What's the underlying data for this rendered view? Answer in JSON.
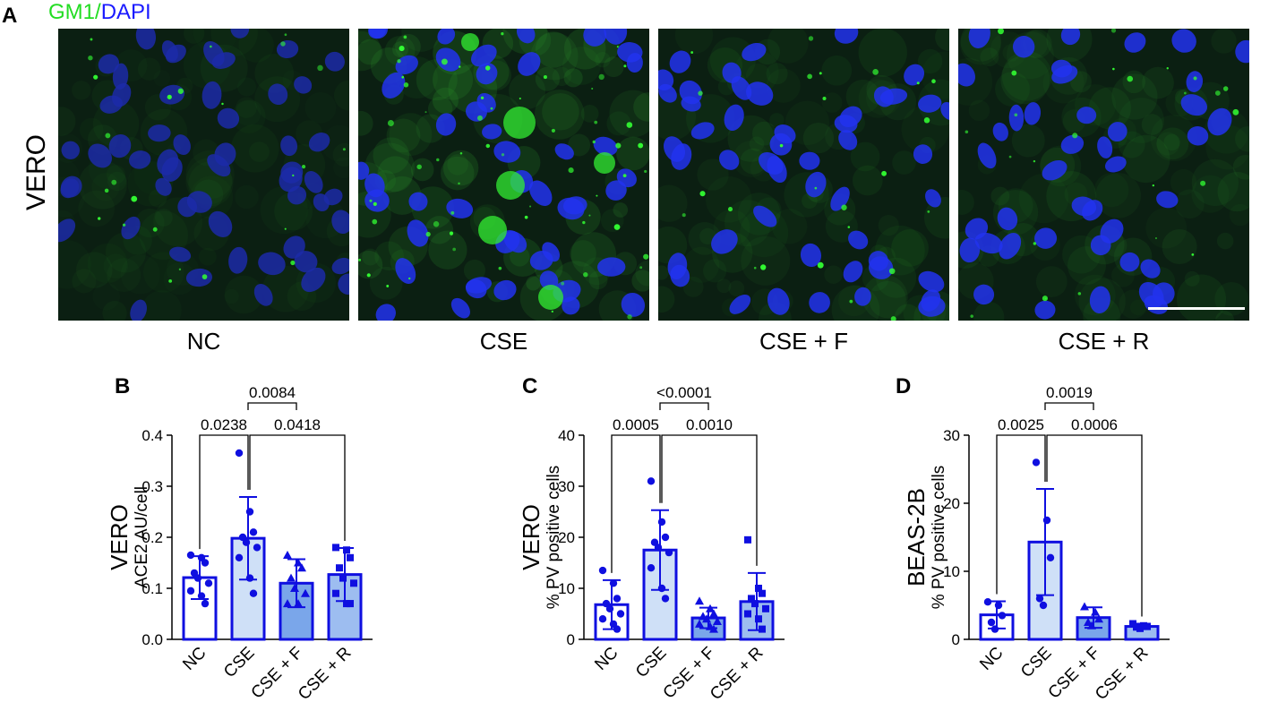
{
  "figure": {
    "panel_a": {
      "letter": "A",
      "legend_green": "GM1",
      "legend_sep": "/",
      "legend_blue": "DAPI",
      "row_label": "VERO",
      "images": [
        {
          "label": "NC"
        },
        {
          "label": "CSE"
        },
        {
          "label": "CSE + F"
        },
        {
          "label": "CSE + R"
        }
      ]
    },
    "colors": {
      "green_stain": "#22dd22",
      "blue_stain": "#1a1aff",
      "bar_stroke": "#0f0fe0",
      "bar_fill_nc": "#ffffff",
      "bar_fill_cse": "#cfe0f7",
      "bar_fill_csef": "#7aa6ea",
      "bar_fill_cser": "#9dbdf0"
    }
  },
  "chart_data": [
    {
      "panel": "B",
      "type": "bar",
      "ylabel_line1": "VERO",
      "ylabel_line2": "ACE2 AU/cell",
      "categories": [
        "NC",
        "CSE",
        "CSE + F",
        "CSE + R"
      ],
      "values": [
        0.121,
        0.198,
        0.11,
        0.127
      ],
      "sd": [
        0.042,
        0.081,
        0.047,
        0.052
      ],
      "points": [
        [
          0.165,
          0.16,
          0.15,
          0.13,
          0.12,
          0.11,
          0.095,
          0.085,
          0.07
        ],
        [
          0.365,
          0.25,
          0.21,
          0.2,
          0.19,
          0.18,
          0.16,
          0.12,
          0.09
        ],
        [
          0.165,
          0.15,
          0.14,
          0.12,
          0.1,
          0.09,
          0.07,
          0.07
        ],
        [
          0.18,
          0.175,
          0.16,
          0.14,
          0.12,
          0.11,
          0.09,
          0.07,
          0.07
        ]
      ],
      "ylim": [
        0,
        0.4
      ],
      "yticks": [
        "0.0",
        "0.1",
        "0.2",
        "0.3",
        "0.4"
      ],
      "comparisons": [
        {
          "from": 0,
          "to": 1,
          "p": "0.0238"
        },
        {
          "from": 1,
          "to": 2,
          "p": "0.0084"
        },
        {
          "from": 1,
          "to": 3,
          "p": "0.0418"
        }
      ]
    },
    {
      "panel": "C",
      "type": "bar",
      "ylabel_line1": "VERO",
      "ylabel_line2": "% PV positive cells",
      "categories": [
        "NC",
        "CSE",
        "CSE + F",
        "CSE + R"
      ],
      "values": [
        6.8,
        17.5,
        4.2,
        7.4
      ],
      "sd": [
        4.8,
        7.8,
        2.0,
        5.6
      ],
      "points": [
        [
          13.5,
          11,
          8,
          7,
          6,
          5,
          4,
          3,
          2
        ],
        [
          31,
          23,
          20,
          19,
          18,
          17,
          14,
          10,
          8
        ],
        [
          7.5,
          6,
          5,
          4.5,
          4,
          3.5,
          3,
          2.5,
          2
        ],
        [
          19.5,
          10,
          9,
          8,
          7,
          6,
          5,
          4,
          2
        ]
      ],
      "ylim": [
        0,
        40
      ],
      "yticks": [
        "0",
        "10",
        "20",
        "30",
        "40"
      ],
      "comparisons": [
        {
          "from": 0,
          "to": 1,
          "p": "0.0005"
        },
        {
          "from": 1,
          "to": 2,
          "p": "<0.0001"
        },
        {
          "from": 1,
          "to": 3,
          "p": "0.0010"
        }
      ]
    },
    {
      "panel": "D",
      "type": "bar",
      "ylabel_line1": "BEAS-2B",
      "ylabel_line2": "% PV positive cells",
      "categories": [
        "NC",
        "CSE",
        "CSE + F",
        "CSE + R"
      ],
      "values": [
        3.6,
        14.3,
        3.2,
        1.9
      ],
      "sd": [
        2.0,
        7.8,
        1.5,
        0.4
      ],
      "points": [
        [
          5.5,
          5,
          3.5,
          2.5,
          1.5
        ],
        [
          26,
          17.5,
          12,
          6,
          5
        ],
        [
          4.8,
          4,
          3,
          2.5,
          2
        ],
        [
          2.3,
          2,
          1.9,
          1.8,
          1.6
        ]
      ],
      "ylim": [
        0,
        30
      ],
      "yticks": [
        "0",
        "10",
        "20",
        "30"
      ],
      "comparisons": [
        {
          "from": 0,
          "to": 1,
          "p": "0.0025"
        },
        {
          "from": 1,
          "to": 2,
          "p": "0.0019"
        },
        {
          "from": 1,
          "to": 3,
          "p": "0.0006"
        }
      ]
    }
  ]
}
